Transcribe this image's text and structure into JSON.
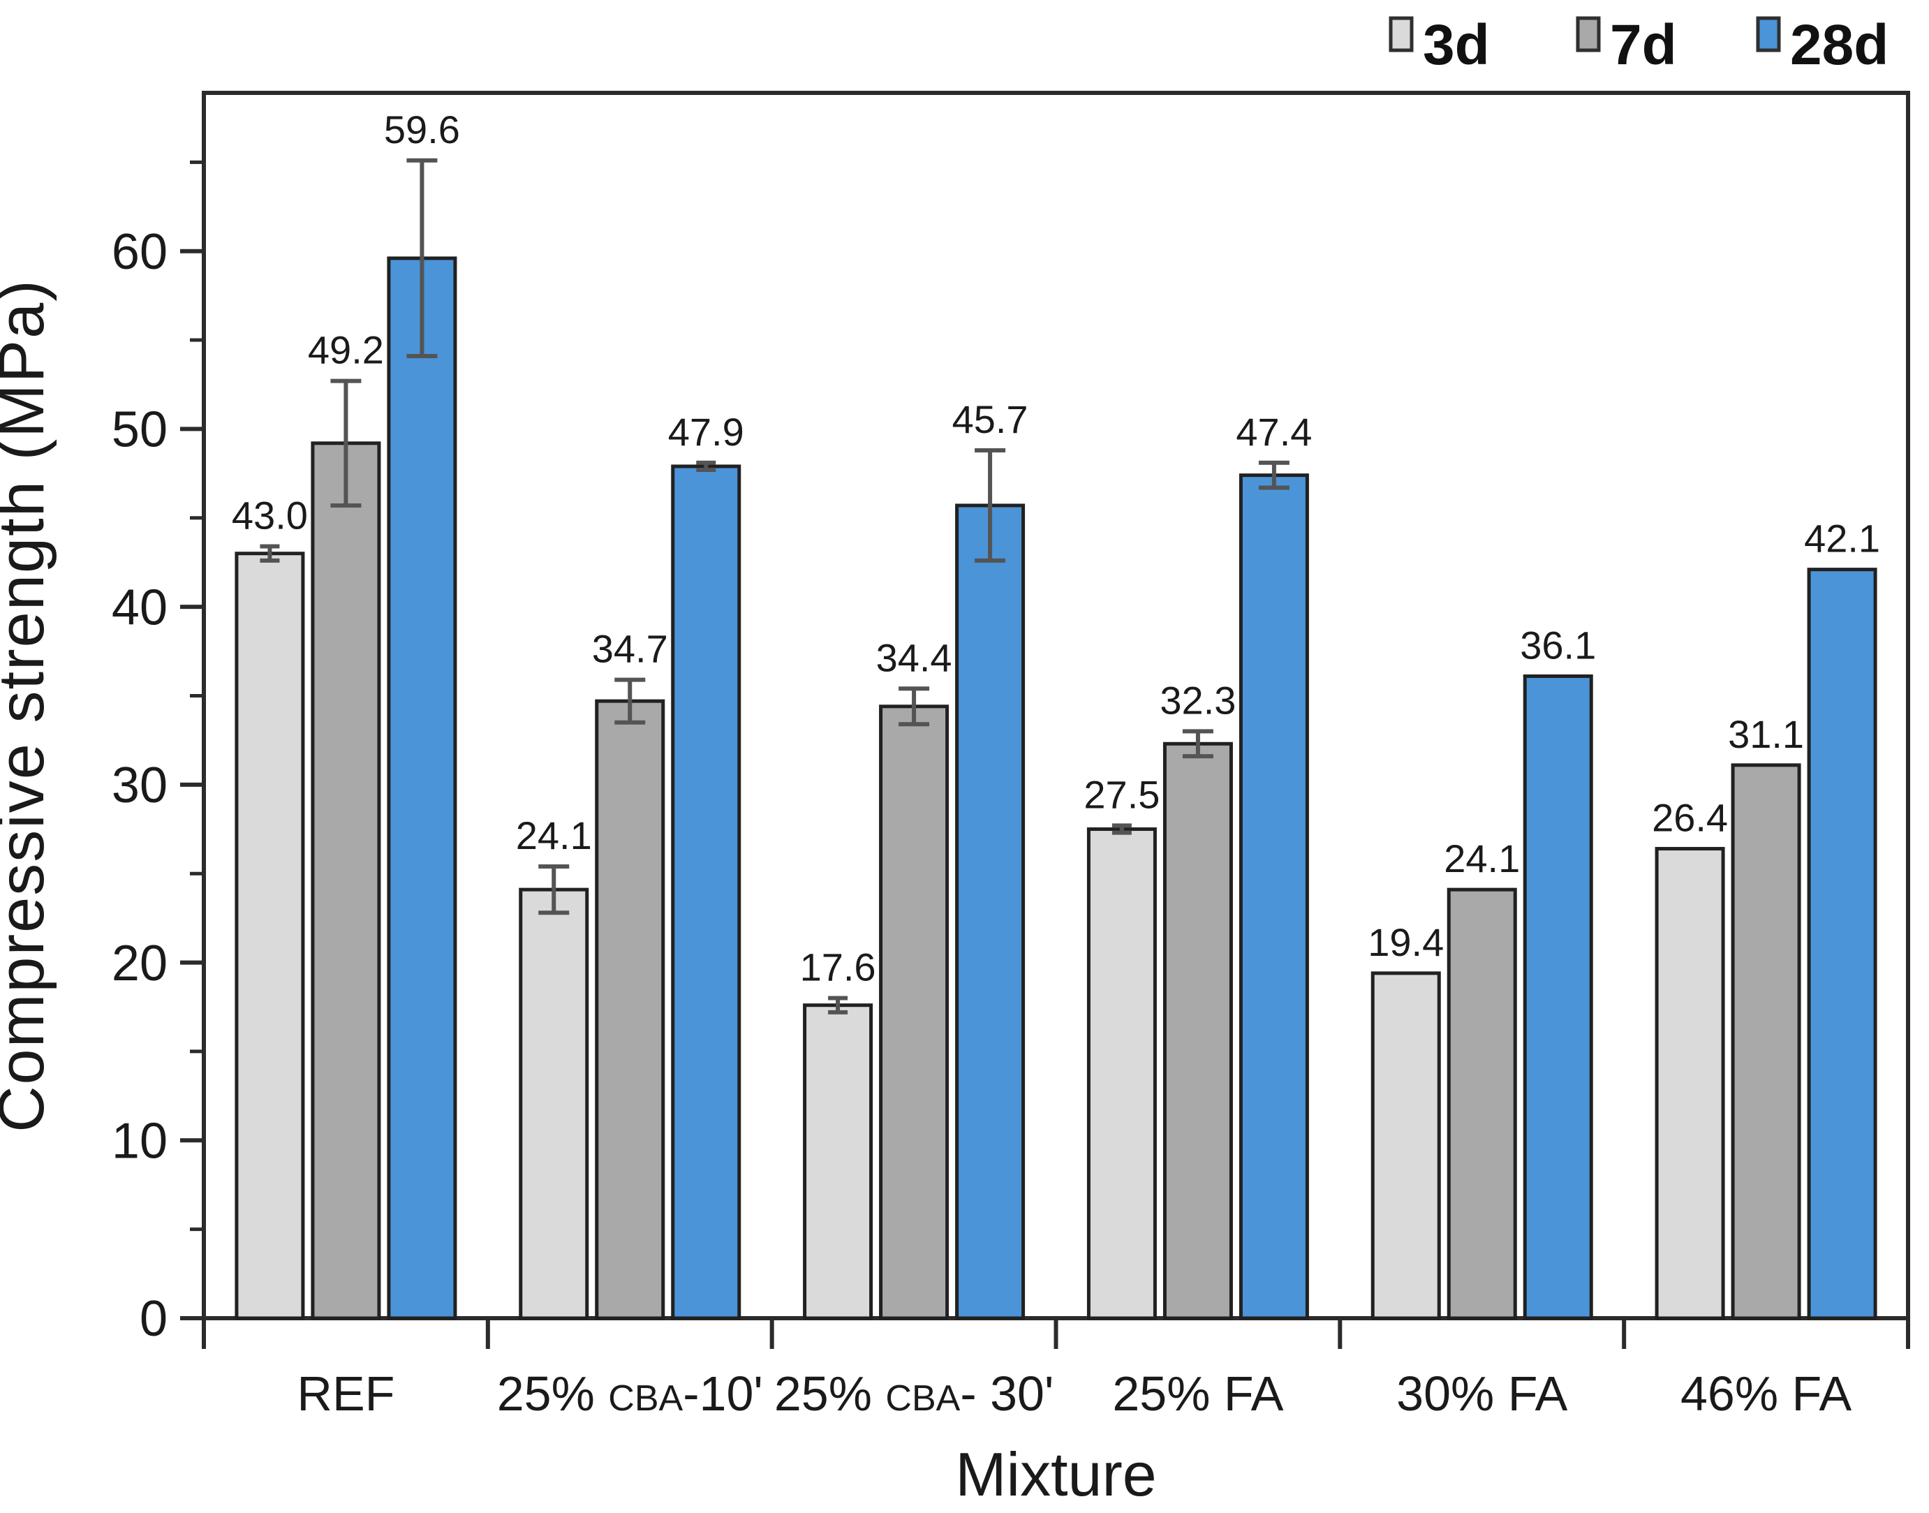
{
  "page": {
    "background": "#ffffff"
  },
  "chart_data": {
    "type": "bar",
    "title": "",
    "xlabel": "Mixture",
    "ylabel": "Compressive strength (MPa)",
    "ylim": [
      0,
      68.9
    ],
    "y_major_ticks": [
      0,
      10,
      20,
      30,
      40,
      50,
      60
    ],
    "y_minor_ticks": [
      5,
      15,
      25,
      35,
      45,
      55,
      65
    ],
    "grid": false,
    "legend": {
      "position": "top-right",
      "entries": [
        "3d",
        "7d",
        "28d"
      ]
    },
    "categories": [
      "REF",
      "25% CBA-10'",
      "25% CBA- 30'",
      "25% FA",
      "30% FA",
      "46% FA"
    ],
    "category_label_parts": [
      [
        {
          "text": "REF",
          "small": false
        }
      ],
      [
        {
          "text": "25% ",
          "small": false
        },
        {
          "text": "CBA",
          "small": true
        },
        {
          "text": "-10'",
          "small": false
        }
      ],
      [
        {
          "text": "25% ",
          "small": false
        },
        {
          "text": "CBA",
          "small": true
        },
        {
          "text": "- 30'",
          "small": false
        }
      ],
      [
        {
          "text": "25% FA",
          "small": false
        }
      ],
      [
        {
          "text": "30% FA",
          "small": false
        }
      ],
      [
        {
          "text": "46% FA",
          "small": false
        }
      ]
    ],
    "series": [
      {
        "name": "3d",
        "color": "#dadada",
        "values": [
          43.0,
          24.1,
          17.6,
          27.5,
          19.4,
          26.4
        ],
        "errors": [
          0.4,
          1.3,
          0.4,
          0.2,
          0,
          0
        ]
      },
      {
        "name": "7d",
        "color": "#a9a9a9",
        "values": [
          49.2,
          34.7,
          34.4,
          32.3,
          24.1,
          31.1
        ],
        "errors": [
          3.5,
          1.2,
          1.0,
          0.7,
          0,
          0
        ]
      },
      {
        "name": "28d",
        "color": "#4b94d8",
        "values": [
          59.6,
          47.9,
          45.7,
          47.4,
          36.1,
          42.1
        ],
        "errors": [
          5.5,
          0.2,
          3.1,
          0.7,
          0,
          0
        ]
      }
    ],
    "value_label_decimals": 1,
    "colors": {
      "bar_border": "#212121",
      "axis": "#2b2b2b",
      "error_bar": "#545454",
      "text": "#1a1a1a",
      "legend_swatch_border": "#2f2f2f"
    }
  }
}
